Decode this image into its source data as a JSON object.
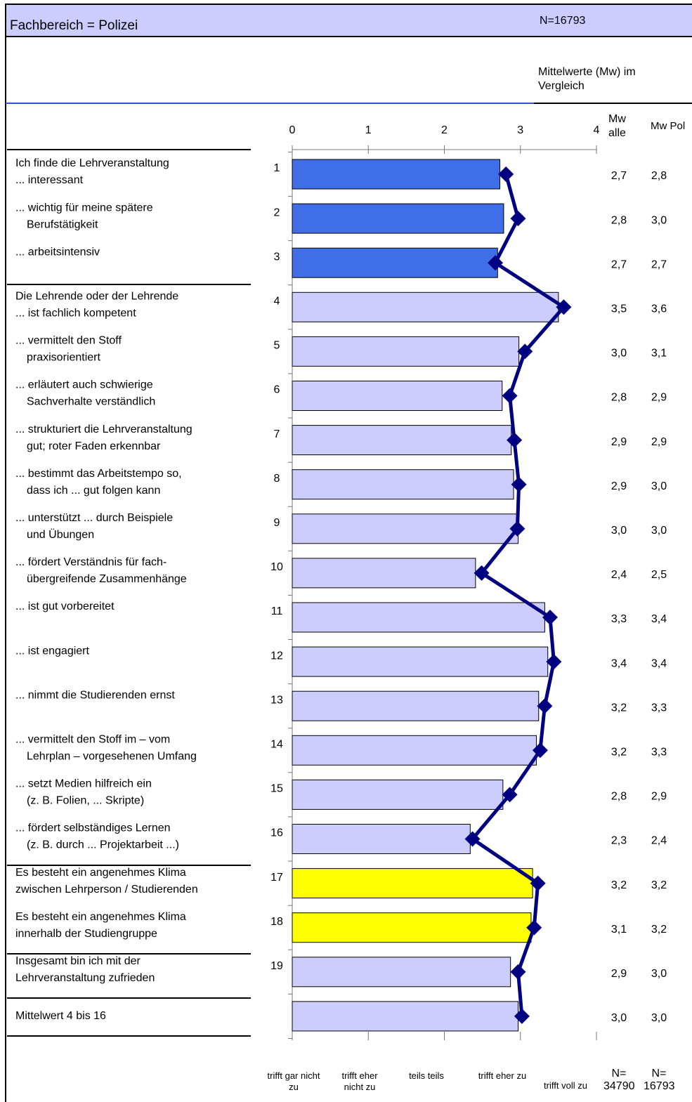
{
  "chart_data": {
    "type": "bar",
    "title": "Fachbereich = Polizei",
    "subtitle": "N=16793",
    "caption": "Mittelwerte (Mw) im Vergleich",
    "orientation": "horizontal",
    "numbers": [
      "1",
      "2",
      "3",
      "4",
      "5",
      "6",
      "7",
      "8",
      "9",
      "10",
      "11",
      "12",
      "13",
      "14",
      "15",
      "16",
      "17",
      "18",
      "19",
      null
    ],
    "categories": [
      [
        "Ich finde  die Lehrveranstaltung",
        "... interessant"
      ],
      [
        "... wichtig für meine spätere",
        "Berufstätigkeit"
      ],
      [
        "... arbeitsintensiv"
      ],
      [
        "Die Lehrende oder der Lehrende",
        "... ist fachlich kompetent"
      ],
      [
        "... vermittelt den Stoff",
        "praxisorientiert"
      ],
      [
        "... erläutert auch schwierige",
        "Sachverhalte verständlich"
      ],
      [
        "... strukturiert die Lehrveranstaltung",
        "gut; roter Faden erkennbar"
      ],
      [
        "... bestimmt das Arbeitstempo so,",
        "dass ich ... gut folgen kann"
      ],
      [
        "... unterstützt ... durch Beispiele",
        "und Übungen"
      ],
      [
        "... fördert Verständnis für fach-",
        "übergreifende Zusammenhänge"
      ],
      [
        "... ist gut vorbereitet"
      ],
      [
        "... ist engagiert"
      ],
      [
        "... nimmt die Studierenden ernst"
      ],
      [
        "... vermittelt den Stoff im – vom",
        "Lehrplan – vorgesehenen Umfang"
      ],
      [
        "... setzt Medien hilfreich ein",
        "(z. B. Folien, ... Skripte)"
      ],
      [
        "... fördert selbständiges Lernen",
        "(z. B. durch ... Projektarbeit ...)"
      ],
      [
        "Es besteht ein angenehmes Klima",
        "zwischen Lehrperson / Studierenden"
      ],
      [
        "Es besteht ein angenehmes Klima",
        "innerhalb der Studiengruppe"
      ],
      [
        "Insgesamt bin ich mit der",
        "Lehrveranstaltung zufrieden"
      ],
      [
        "Mittelwert 4 bis 16"
      ]
    ],
    "series": [
      {
        "name": "Mw alle",
        "n_label": "N= 34790",
        "values": [
          2.73,
          2.78,
          2.7,
          3.5,
          2.98,
          2.76,
          2.88,
          2.91,
          2.97,
          2.41,
          3.32,
          3.36,
          3.24,
          3.21,
          2.77,
          2.34,
          3.16,
          3.14,
          2.87,
          2.97
        ],
        "value_labels": [
          "2,7",
          "2,8",
          "2,7",
          "3,5",
          "3,0",
          "2,8",
          "2,9",
          "2,9",
          "3,0",
          "2,4",
          "3,3",
          "3,4",
          "3,2",
          "3,2",
          "2,8",
          "2,3",
          "3,2",
          "3,1",
          "2,9",
          "3,0"
        ],
        "colors": [
          "#3f6ee8",
          "#3f6ee8",
          "#3f6ee8",
          "#ccccff",
          "#ccccff",
          "#ccccff",
          "#ccccff",
          "#ccccff",
          "#ccccff",
          "#ccccff",
          "#ccccff",
          "#ccccff",
          "#ccccff",
          "#ccccff",
          "#ccccff",
          "#ccccff",
          "#ffff00",
          "#ffff00",
          "#ccccff",
          "#ccccff"
        ]
      },
      {
        "name": "Mw Pol",
        "n_label": "N= 16793",
        "type": "line",
        "color": "#000080",
        "values": [
          2.81,
          2.97,
          2.67,
          3.57,
          3.06,
          2.86,
          2.92,
          2.98,
          2.96,
          2.49,
          3.39,
          3.44,
          3.32,
          3.26,
          2.86,
          2.37,
          3.23,
          3.18,
          2.97,
          3.02
        ],
        "value_labels": [
          "2,8",
          "3,0",
          "2,7",
          "3,6",
          "3,1",
          "2,9",
          "2,9",
          "3,0",
          "3,0",
          "2,5",
          "3,4",
          "3,4",
          "3,3",
          "3,3",
          "2,9",
          "2,4",
          "3,2",
          "3,2",
          "3,0",
          "3,0"
        ]
      }
    ],
    "xlim": [
      0,
      4
    ],
    "xticks": [
      0,
      1,
      2,
      3,
      4
    ],
    "scale_labels": [
      "trifft gar nicht zu",
      "trifft eher nicht zu",
      "teils teils",
      "trifft eher zu",
      "trifft voll zu"
    ]
  }
}
